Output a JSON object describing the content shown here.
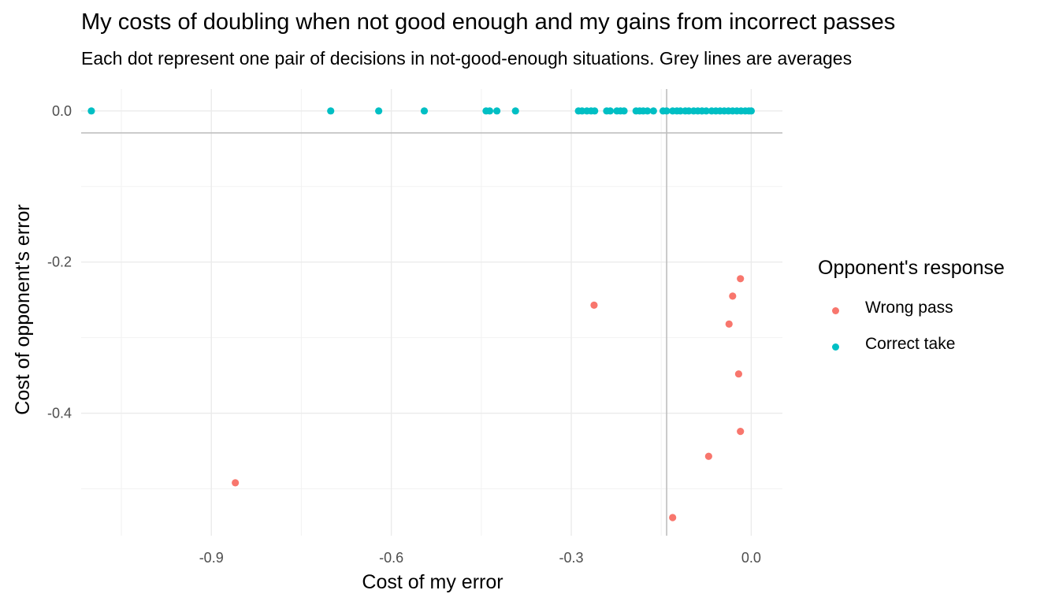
{
  "chart_data": {
    "type": "scatter",
    "title": "My costs of doubling when not good enough and my gains from incorrect passes",
    "subtitle": "Each dot represent one pair of decisions in not-good-enough situations. Grey lines are averages",
    "xlabel": "Cost of my error",
    "ylabel": "Cost of opponent's error",
    "xlim": [
      -1.117,
      0.052
    ],
    "ylim": [
      -0.562,
      0.029
    ],
    "x_ticks": [
      -0.9,
      -0.6,
      -0.3,
      0.0
    ],
    "x_tick_labels": [
      "-0.9",
      "-0.6",
      "-0.3",
      "0.0"
    ],
    "y_ticks": [
      0.0,
      -0.2,
      -0.4
    ],
    "y_tick_labels": [
      "0.0",
      "-0.2",
      "-0.4"
    ],
    "grid": true,
    "reference_lines": {
      "x_mean": -0.141,
      "y_mean": -0.029,
      "color": "#bebebe"
    },
    "legend": {
      "title": "Opponent's response",
      "position": "right"
    },
    "series": [
      {
        "name": "Wrong pass",
        "color": "#f8766d",
        "points": [
          [
            -0.86,
            -0.492
          ],
          [
            -0.262,
            -0.257
          ],
          [
            -0.131,
            -0.538
          ],
          [
            -0.071,
            -0.457
          ],
          [
            -0.037,
            -0.282
          ],
          [
            -0.031,
            -0.245
          ],
          [
            -0.021,
            -0.348
          ],
          [
            -0.018,
            -0.424
          ],
          [
            -0.018,
            -0.222
          ]
        ]
      },
      {
        "name": "Correct take",
        "color": "#00bfc4",
        "points": [
          [
            -1.1,
            0.0
          ],
          [
            -0.701,
            0.0
          ],
          [
            -0.621,
            0.0
          ],
          [
            -0.545,
            0.0
          ],
          [
            -0.442,
            0.0
          ],
          [
            -0.436,
            0.0
          ],
          [
            -0.424,
            0.0
          ],
          [
            -0.393,
            0.0
          ],
          [
            -0.288,
            0.0
          ],
          [
            -0.282,
            0.0
          ],
          [
            -0.274,
            0.0
          ],
          [
            -0.267,
            0.0
          ],
          [
            -0.261,
            0.0
          ],
          [
            -0.241,
            0.0
          ],
          [
            -0.235,
            0.0
          ],
          [
            -0.224,
            0.0
          ],
          [
            -0.218,
            0.0
          ],
          [
            -0.212,
            0.0
          ],
          [
            -0.192,
            0.0
          ],
          [
            -0.186,
            0.0
          ],
          [
            -0.18,
            0.0
          ],
          [
            -0.173,
            0.0
          ],
          [
            -0.163,
            0.0
          ],
          [
            -0.147,
            0.0
          ],
          [
            -0.141,
            0.0
          ],
          [
            -0.131,
            0.0
          ],
          [
            -0.124,
            0.0
          ],
          [
            -0.118,
            0.0
          ],
          [
            -0.11,
            0.0
          ],
          [
            -0.104,
            0.0
          ],
          [
            -0.096,
            0.0
          ],
          [
            -0.089,
            0.0
          ],
          [
            -0.082,
            0.0
          ],
          [
            -0.075,
            0.0
          ],
          [
            -0.066,
            0.0
          ],
          [
            -0.059,
            0.0
          ],
          [
            -0.052,
            0.0
          ],
          [
            -0.045,
            0.0
          ],
          [
            -0.038,
            0.0
          ],
          [
            -0.031,
            0.0
          ],
          [
            -0.024,
            0.0
          ],
          [
            -0.017,
            0.0
          ],
          [
            -0.01,
            0.0
          ],
          [
            -0.004,
            0.0
          ],
          [
            0.0,
            0.0
          ]
        ]
      }
    ]
  }
}
